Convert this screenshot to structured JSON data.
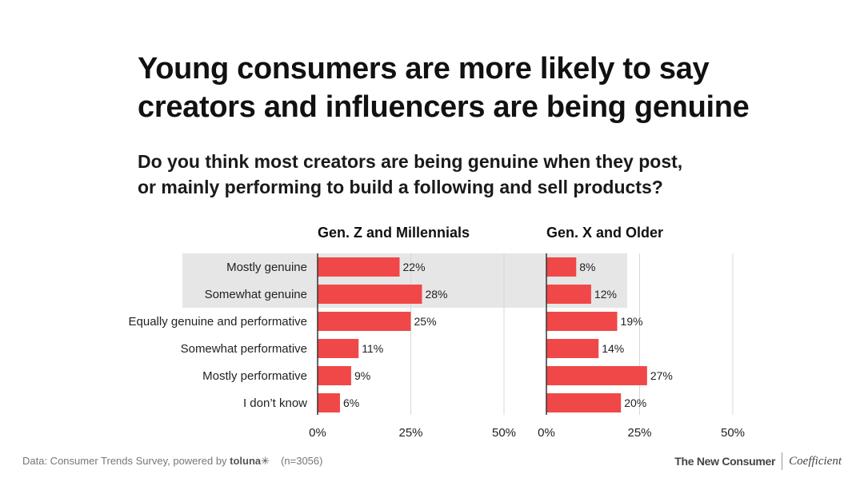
{
  "title": {
    "line1": "Young consumers are more likely to say",
    "line2": "creators and influencers are being genuine"
  },
  "subtitle": {
    "line1": "Do you think most creators are being genuine when they post,",
    "line2": "or mainly performing to build a following and sell products?"
  },
  "chart_data": {
    "type": "bar",
    "orientation": "horizontal",
    "categories": [
      "Mostly genuine",
      "Somewhat genuine",
      "Equally genuine and performative",
      "Somewhat performative",
      "Mostly performative",
      "I don’t know"
    ],
    "highlighted_categories": [
      "Mostly genuine",
      "Somewhat genuine"
    ],
    "series": [
      {
        "name": "Gen. Z and Millennials",
        "values": [
          22,
          28,
          25,
          11,
          9,
          6
        ]
      },
      {
        "name": "Gen. X and Older",
        "values": [
          8,
          12,
          19,
          14,
          27,
          20
        ]
      }
    ],
    "xlim": [
      0,
      50
    ],
    "xticks": [
      0,
      25,
      50
    ],
    "tick_labels": [
      "0%",
      "25%",
      "50%"
    ],
    "value_suffix": "%",
    "grid": true
  },
  "colors": {
    "bar": "#f04848",
    "highlight": "#e6e6e6",
    "grid": "#d8d8d8",
    "axis": "#333333"
  },
  "footer": {
    "source_prefix": "Data: Consumer Trends Survey, powered by ",
    "source_brand": "toluna",
    "brand_mark": "✳",
    "sample": "(n=3056)",
    "logo_left": "The New Consumer",
    "logo_right": "Coefficient"
  }
}
